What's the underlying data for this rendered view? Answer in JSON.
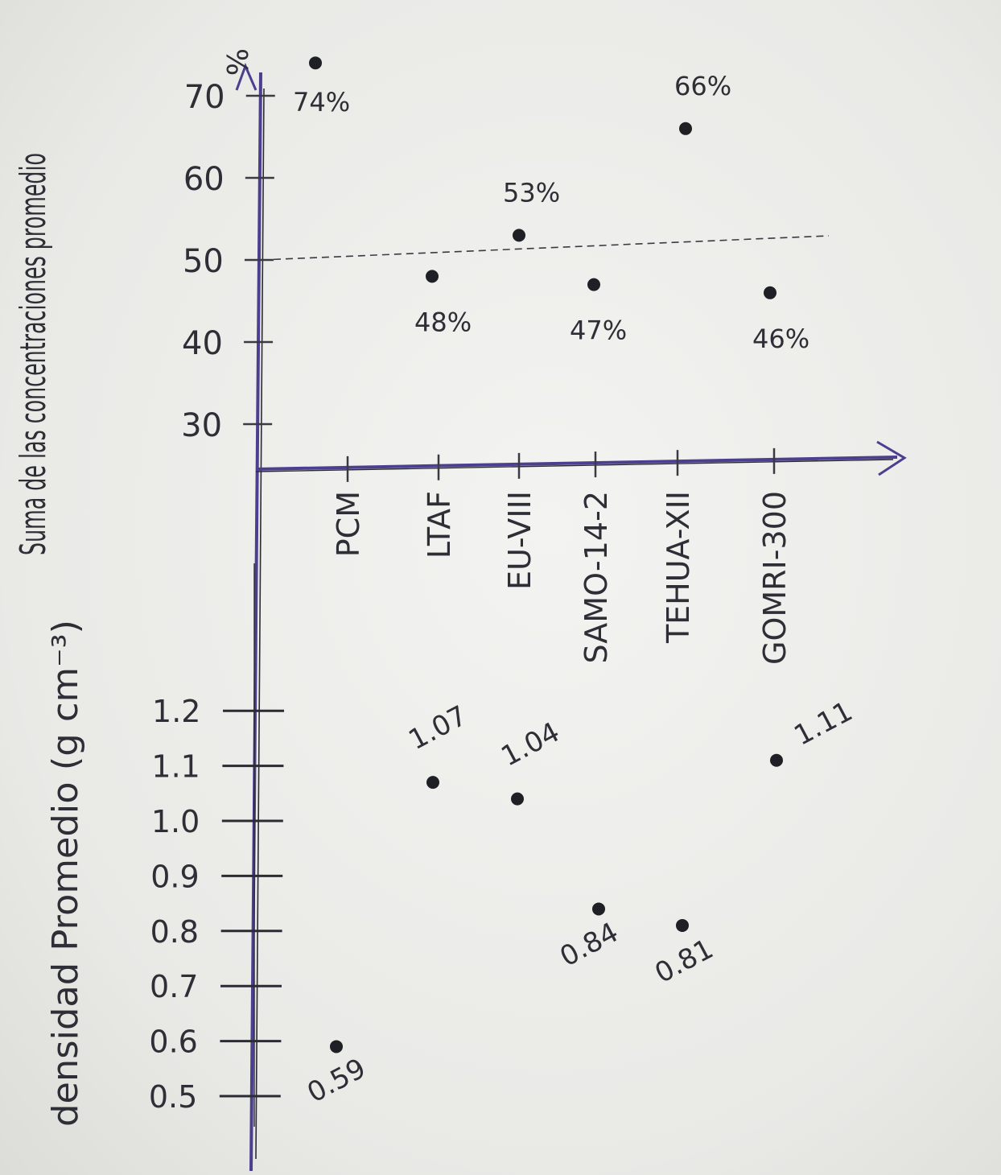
{
  "colors": {
    "axis": "#4b3f8f",
    "ink": "#2d2d35",
    "paper": "#efefed"
  },
  "chart_data": [
    {
      "type": "scatter",
      "title": "",
      "ylabel": "Suma de las concentraciones promedio",
      "yunit": "%",
      "xlabel": "",
      "ylim": [
        25,
        75
      ],
      "yticks": [
        "30",
        "40",
        "50",
        "60",
        "70"
      ],
      "reference_line": 50,
      "categories": [
        "PCM",
        "LTAF",
        "EU-VIII",
        "SAMO-14-2",
        "TEHUA-XII",
        "GOMRI-300"
      ],
      "points": [
        {
          "category": "PCM",
          "value": 74,
          "label": "74%"
        },
        {
          "category": "LTAF",
          "value": 48,
          "label": "48%"
        },
        {
          "category": "EU-VIII",
          "value": 53,
          "label": "53%"
        },
        {
          "category": "SAMO-14-2",
          "value": 47,
          "label": "47%"
        },
        {
          "category": "TEHUA-XII",
          "value": 66,
          "label": "66%"
        },
        {
          "category": "GOMRI-300",
          "value": 46,
          "label": "46%"
        }
      ]
    },
    {
      "type": "scatter",
      "title": "",
      "ylabel": "densidad Promedio (g cm⁻³)",
      "ylim": [
        0.5,
        1.2
      ],
      "yticks": [
        "0.5",
        "0.6",
        "0.7",
        "0.8",
        "0.9",
        "1.0",
        "1.1",
        "1.2"
      ],
      "points": [
        {
          "category": "PCM",
          "value": 0.59,
          "label": "0.59"
        },
        {
          "category": "LTAF",
          "value": 1.07,
          "label": "1.07"
        },
        {
          "category": "EU-VIII",
          "value": 1.04,
          "label": "1.04"
        },
        {
          "category": "SAMO-14-2",
          "value": 0.84,
          "label": "0.84"
        },
        {
          "category": "TEHUA-XII",
          "value": 0.81,
          "label": "0.81"
        },
        {
          "category": "GOMRI-300",
          "value": 1.11,
          "label": "1.11"
        }
      ]
    }
  ]
}
